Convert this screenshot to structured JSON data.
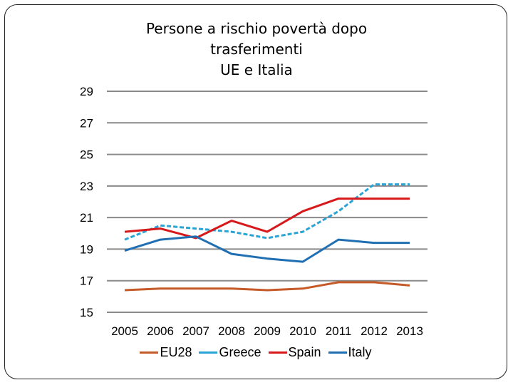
{
  "chart_data": {
    "type": "line",
    "title": [
      "Persone a rischio povertà  dopo",
      "trasferimenti",
      "UE e Italia"
    ],
    "categories": [
      "2005",
      "2006",
      "2007",
      "2008",
      "2009",
      "2010",
      "2011",
      "2012",
      "2013"
    ],
    "xlabel": "",
    "ylabel": "",
    "ylim": [
      15,
      29
    ],
    "yticks": [
      "29",
      "27",
      "25",
      "23",
      "21",
      "19",
      "17",
      "15"
    ],
    "grid": true,
    "legend_position": "bottom",
    "series": [
      {
        "name": "EU28",
        "color": "#c55a28",
        "dashed": false,
        "values": [
          16.4,
          16.5,
          16.5,
          16.5,
          16.4,
          16.5,
          16.9,
          16.9,
          16.7
        ]
      },
      {
        "name": "Greece",
        "color": "#2aa3d6",
        "dashed": true,
        "values": [
          19.6,
          20.5,
          20.3,
          20.1,
          19.7,
          20.1,
          21.4,
          23.1,
          23.1
        ]
      },
      {
        "name": "Spain",
        "color": "#d7191c",
        "dashed": false,
        "values": [
          20.1,
          20.3,
          19.7,
          20.8,
          20.1,
          21.4,
          22.2,
          22.2,
          22.2
        ]
      },
      {
        "name": "Italy",
        "color": "#1f6fb2",
        "dashed": false,
        "values": [
          18.9,
          19.6,
          19.8,
          18.7,
          18.4,
          18.2,
          19.6,
          19.4,
          19.4
        ]
      }
    ]
  }
}
